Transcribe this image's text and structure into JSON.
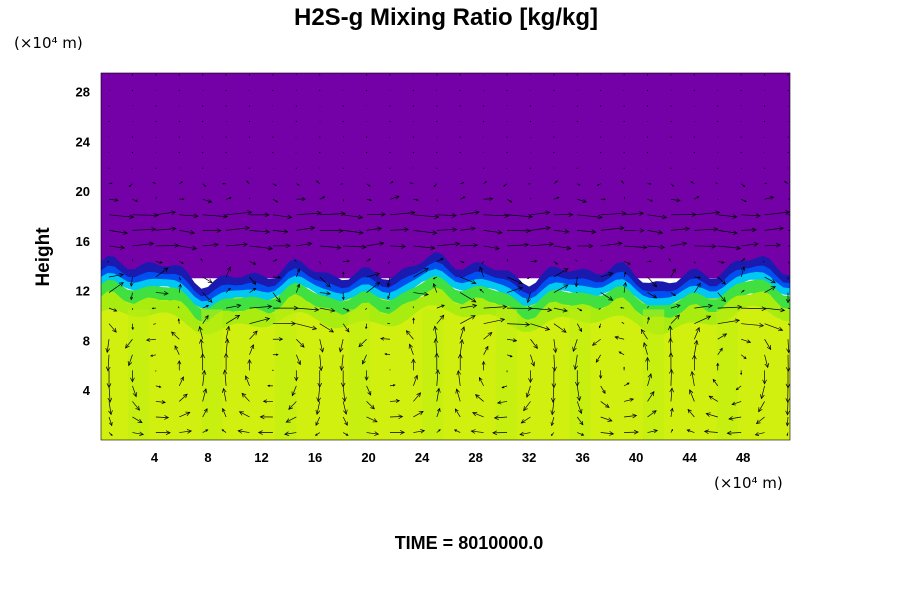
{
  "chart_data": {
    "type": "heatmap",
    "title": "H2S-g Mixing Ratio [kg/kg]",
    "ylabel": "Height",
    "xlabel": "",
    "x_unit": "(×10⁴ m)",
    "y_unit": "(×10⁴ m)",
    "xlim": [
      0,
      51.5
    ],
    "ylim": [
      0,
      29.5
    ],
    "xticks": [
      4,
      8,
      12,
      16,
      20,
      24,
      28,
      32,
      36,
      40,
      44,
      48
    ],
    "yticks": [
      4,
      8,
      12,
      16,
      20,
      24,
      28
    ],
    "footer": "TIME = 8010000.0",
    "colors": {
      "upper_layer": "#7400a8",
      "upper_variation": "#6a00b8",
      "interface_dark": "#1a1ab0",
      "interface_blue": "#0050f0",
      "interface_cyan": "#00c8f0",
      "interface_green": "#40e040",
      "lower_green": "#a8ec10",
      "lower_layer": "#d2f010",
      "lower_variation": "#c0ee10",
      "arrows": "#000000"
    },
    "layers": [
      {
        "name": "upper",
        "y_range": [
          13,
          29.5
        ]
      },
      {
        "name": "interface",
        "y_range": [
          11.5,
          13.5
        ]
      },
      {
        "name": "lower",
        "y_range": [
          0,
          11.5
        ]
      }
    ],
    "interface_mean_height": 12.2,
    "vector_field": {
      "x_spacing": 1.75,
      "y_spacing": 1.25,
      "jet_heights": [
        10,
        16,
        18
      ],
      "cell_count": 6
    }
  }
}
